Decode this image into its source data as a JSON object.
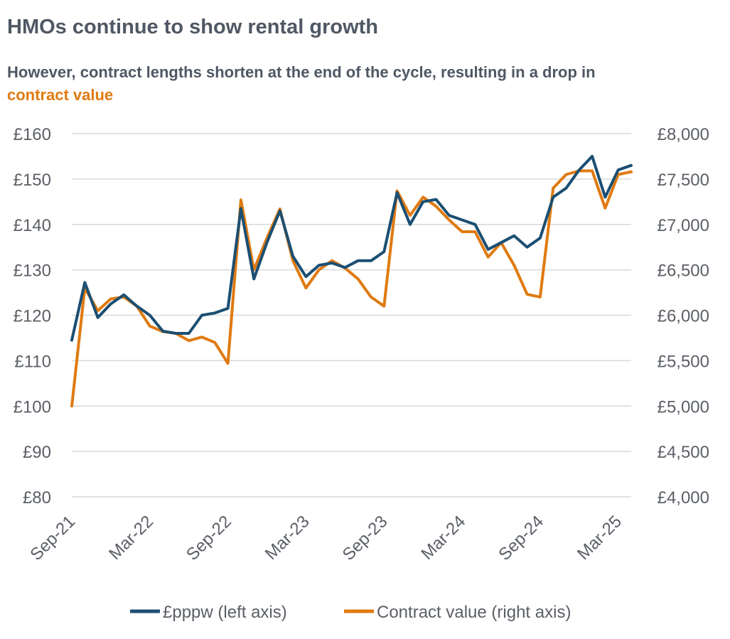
{
  "title": "HMOs continue to show rental growth",
  "subtitle_pre": "However, contract lengths shorten at the end of the cycle, resulting in a drop in ",
  "subtitle_highlight": "contract value",
  "colors": {
    "pppw": "#1b4f72",
    "contract": "#e07a10",
    "grid": "#d9d9d9",
    "text": "#5b5f66",
    "title": "#4f5864"
  },
  "chart_data": {
    "type": "line",
    "x": [
      "Sep-21",
      "Oct-21",
      "Nov-21",
      "Dec-21",
      "Jan-22",
      "Feb-22",
      "Mar-22",
      "Apr-22",
      "May-22",
      "Jun-22",
      "Jul-22",
      "Aug-22",
      "Sep-22",
      "Oct-22",
      "Nov-22",
      "Dec-22",
      "Jan-23",
      "Feb-23",
      "Mar-23",
      "Apr-23",
      "May-23",
      "Jun-23",
      "Jul-23",
      "Aug-23",
      "Sep-23",
      "Oct-23",
      "Nov-23",
      "Dec-23",
      "Jan-24",
      "Feb-24",
      "Mar-24",
      "Apr-24",
      "May-24",
      "Jun-24",
      "Jul-24",
      "Aug-24",
      "Sep-24",
      "Oct-24",
      "Nov-24",
      "Dec-24",
      "Jan-25",
      "Feb-25",
      "Mar-25",
      "Apr-25"
    ],
    "x_tick_labels": [
      "Sep-21",
      "Mar-22",
      "Sep-22",
      "Mar-23",
      "Sep-23",
      "Mar-24",
      "Sep-24",
      "Mar-25"
    ],
    "x_tick_index": [
      0,
      6,
      12,
      18,
      24,
      30,
      36,
      42
    ],
    "series": [
      {
        "name": "£pppw (left axis)",
        "axis": "left",
        "values": [
          114.5,
          127.2,
          119.5,
          122.5,
          124.5,
          122,
          120,
          116.5,
          116,
          116,
          120,
          120.5,
          121.5,
          143.5,
          128,
          136,
          143,
          133,
          128.5,
          131,
          131.5,
          130.5,
          132,
          132,
          134,
          147,
          140,
          145,
          145.5,
          142,
          141,
          140,
          134.5,
          136,
          137.5,
          135,
          137,
          146,
          148,
          152,
          155,
          146,
          152,
          153
        ]
      },
      {
        "name": "Contract value (right axis)",
        "axis": "right",
        "values": [
          5000,
          6300,
          6050,
          6180,
          6200,
          6100,
          5880,
          5820,
          5800,
          5720,
          5760,
          5700,
          5470,
          7270,
          6500,
          6850,
          7170,
          6600,
          6300,
          6500,
          6600,
          6520,
          6400,
          6200,
          6100,
          7370,
          7100,
          7300,
          7200,
          7050,
          6920,
          6920,
          6640,
          6800,
          6550,
          6230,
          6200,
          7400,
          7550,
          7590,
          7590,
          7180,
          7550,
          7580
        ]
      }
    ],
    "y_left": {
      "ylim": [
        80,
        160
      ],
      "ticks": [
        "£80",
        "£90",
        "£100",
        "£110",
        "£120",
        "£130",
        "£140",
        "£150",
        "£160"
      ],
      "tick_values": [
        80,
        90,
        100,
        110,
        120,
        130,
        140,
        150,
        160
      ]
    },
    "y_right": {
      "ylim": [
        4000,
        8000
      ],
      "ticks": [
        "£4,000",
        "£4,500",
        "£5,000",
        "£5,500",
        "£6,000",
        "£6,500",
        "£7,000",
        "£7,500",
        "£8,000"
      ],
      "tick_values": [
        4000,
        4500,
        5000,
        5500,
        6000,
        6500,
        7000,
        7500,
        8000
      ]
    },
    "grid": true,
    "legend_position": "bottom"
  }
}
